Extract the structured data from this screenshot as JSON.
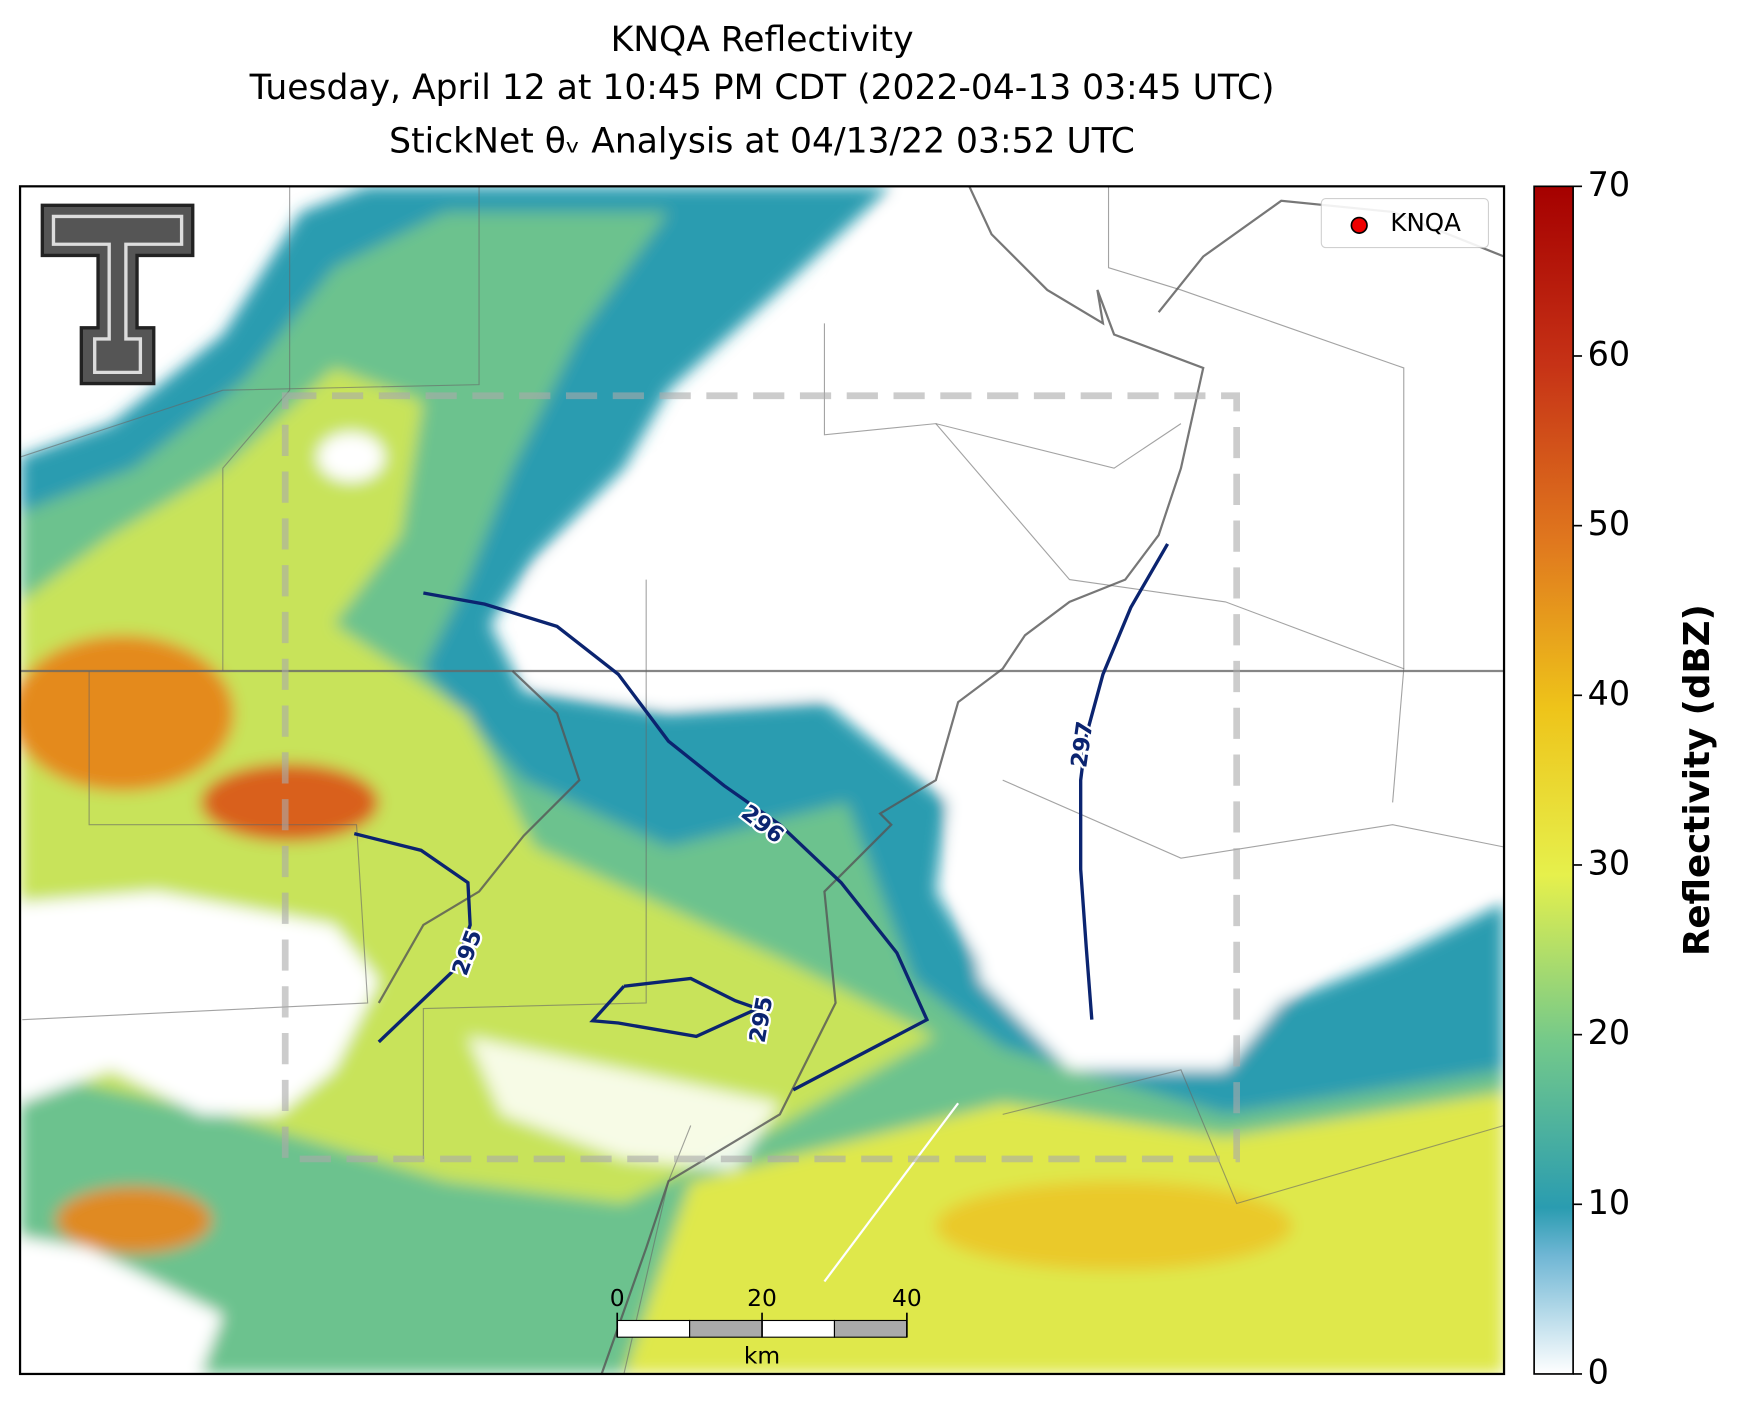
{
  "title": {
    "lines": [
      "KNQA Reflectivity",
      "Tuesday, April 12 at 10:45 PM CDT (2022-04-13 03:45 UTC)",
      "StickNet θᵥ Analysis at 04/13/22 03:52 UTC"
    ]
  },
  "legend": {
    "entries": [
      "KNQA"
    ]
  },
  "contours": [
    {
      "level": 296
    },
    {
      "level": 297
    },
    {
      "level": 295
    },
    {
      "level": 295
    }
  ],
  "scalebar": {
    "ticks": [
      0,
      20,
      40
    ],
    "unit": "km"
  },
  "colorbar": {
    "label": "Reflectivity (dBZ)",
    "lim": [
      0,
      70
    ],
    "ticks": [
      0,
      10,
      20,
      30,
      40,
      50,
      60,
      70
    ]
  }
}
